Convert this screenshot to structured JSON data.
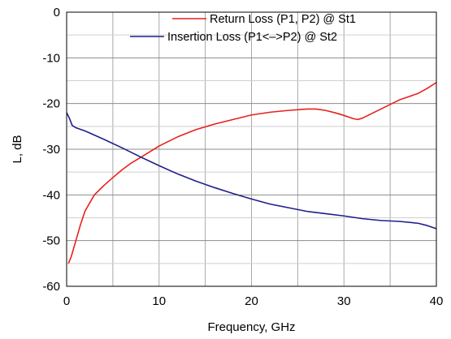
{
  "chart_data": {
    "type": "line",
    "title": "",
    "xlabel": "Frequency, GHz",
    "ylabel": "L, dB",
    "xlim": [
      0,
      40
    ],
    "ylim": [
      -60,
      0
    ],
    "xticks": [
      "0",
      "10",
      "20",
      "30",
      "40"
    ],
    "yticks": [
      "0",
      "-10",
      "-20",
      "-30",
      "-40",
      "-50",
      "-60"
    ],
    "grid": true,
    "legend_position": "top-right",
    "series": [
      {
        "name": "Return Loss (P1, P2) @ St1",
        "color": "#e8201c",
        "x": [
          0.2,
          0.5,
          1,
          1.5,
          2,
          3,
          4,
          5,
          6,
          7,
          8,
          10,
          12,
          14,
          16,
          18,
          20,
          22,
          24,
          26,
          27,
          28,
          29,
          30,
          31,
          31.5,
          32,
          33,
          34,
          35,
          36,
          37,
          38,
          39,
          40
        ],
        "values": [
          -55,
          -53.5,
          -50,
          -46.5,
          -43.5,
          -40,
          -38,
          -36.2,
          -34.5,
          -33,
          -31.8,
          -29.3,
          -27.3,
          -25.7,
          -24.5,
          -23.5,
          -22.5,
          -21.9,
          -21.5,
          -21.2,
          -21.2,
          -21.5,
          -22,
          -22.6,
          -23.3,
          -23.5,
          -23.2,
          -22.2,
          -21.2,
          -20.2,
          -19.2,
          -18.5,
          -17.8,
          -16.7,
          -15.4
        ]
      },
      {
        "name": "Insertion Loss (P1<–>P2) @ St2",
        "color": "#1e1e8c",
        "x": [
          0,
          0.3,
          0.6,
          1,
          2,
          4,
          6,
          8,
          10,
          12,
          14,
          16,
          18,
          20,
          22,
          24,
          26,
          28,
          30,
          32,
          34,
          36,
          38,
          39,
          40
        ],
        "values": [
          -22,
          -23.2,
          -24.8,
          -25.3,
          -26,
          -27.8,
          -29.7,
          -31.7,
          -33.6,
          -35.4,
          -37,
          -38.4,
          -39.7,
          -40.9,
          -42,
          -42.8,
          -43.6,
          -44.1,
          -44.6,
          -45.2,
          -45.6,
          -45.8,
          -46.2,
          -46.7,
          -47.4
        ]
      }
    ]
  }
}
